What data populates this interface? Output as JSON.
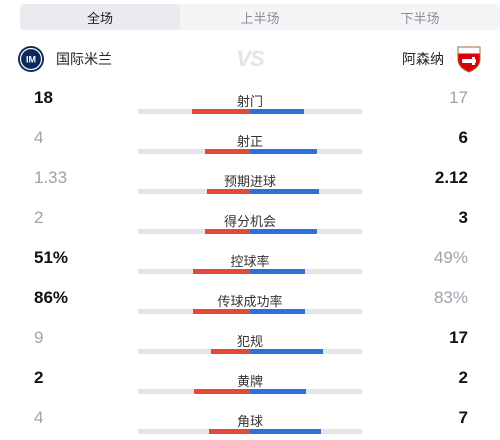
{
  "tabs": [
    {
      "label": "全场",
      "active": true
    },
    {
      "label": "上半场",
      "active": false
    },
    {
      "label": "下半场",
      "active": false
    }
  ],
  "teams": {
    "home": {
      "name": "国际米兰",
      "logo_icon": "inter-milan-crest-icon",
      "color": "#e5473b"
    },
    "away": {
      "name": "阿森纳",
      "logo_icon": "arsenal-crest-icon",
      "color": "#2f6fdb"
    },
    "vs_text": "VS"
  },
  "stats": [
    {
      "label": "射门",
      "home": "18",
      "away": "17",
      "home_share": 0.514,
      "away_share": 0.486,
      "leader": "home"
    },
    {
      "label": "射正",
      "home": "4",
      "away": "6",
      "home_share": 0.4,
      "away_share": 0.6,
      "leader": "away"
    },
    {
      "label": "预期进球",
      "home": "1.33",
      "away": "2.12",
      "home_share": 0.386,
      "away_share": 0.614,
      "leader": "away"
    },
    {
      "label": "得分机会",
      "home": "2",
      "away": "3",
      "home_share": 0.4,
      "away_share": 0.6,
      "leader": "away"
    },
    {
      "label": "控球率",
      "home": "51%",
      "away": "49%",
      "home_share": 0.51,
      "away_share": 0.49,
      "leader": "home"
    },
    {
      "label": "传球成功率",
      "home": "86%",
      "away": "83%",
      "home_share": 0.509,
      "away_share": 0.491,
      "leader": "home"
    },
    {
      "label": "犯规",
      "home": "9",
      "away": "17",
      "home_share": 0.346,
      "away_share": 0.654,
      "leader": "away"
    },
    {
      "label": "黄牌",
      "home": "2",
      "away": "2",
      "home_share": 0.5,
      "away_share": 0.5,
      "leader": "both"
    },
    {
      "label": "角球",
      "home": "4",
      "away": "7",
      "home_share": 0.364,
      "away_share": 0.636,
      "leader": "away"
    }
  ]
}
